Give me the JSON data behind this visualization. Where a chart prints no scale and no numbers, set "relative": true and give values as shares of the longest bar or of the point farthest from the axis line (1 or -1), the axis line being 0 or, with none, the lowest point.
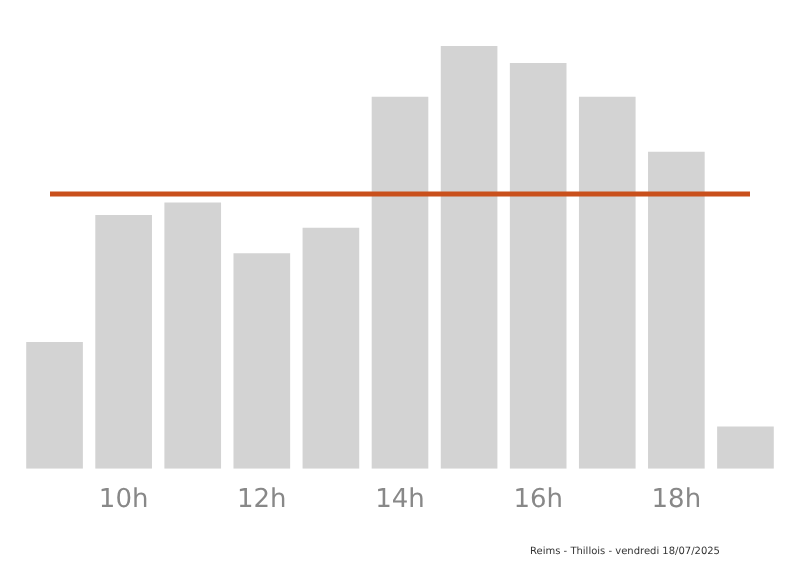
{
  "chart_data": {
    "type": "bar",
    "relative": true,
    "categories": [
      null,
      "10h",
      null,
      "12h",
      null,
      "14h",
      null,
      "16h",
      null,
      "18h",
      null
    ],
    "values": [
      0.3,
      0.6,
      0.63,
      0.51,
      0.57,
      0.88,
      1,
      0.96,
      0.88,
      0.75,
      0.1
    ],
    "color": "#d3d3d3",
    "ref_lines": [
      {
        "axis": "y",
        "value": 0.65,
        "color": "#c9501c"
      }
    ],
    "annotations": [
      "Reims - Thillois - vendredi 18/07/2025"
    ],
    "grid": false,
    "legend": false
  }
}
